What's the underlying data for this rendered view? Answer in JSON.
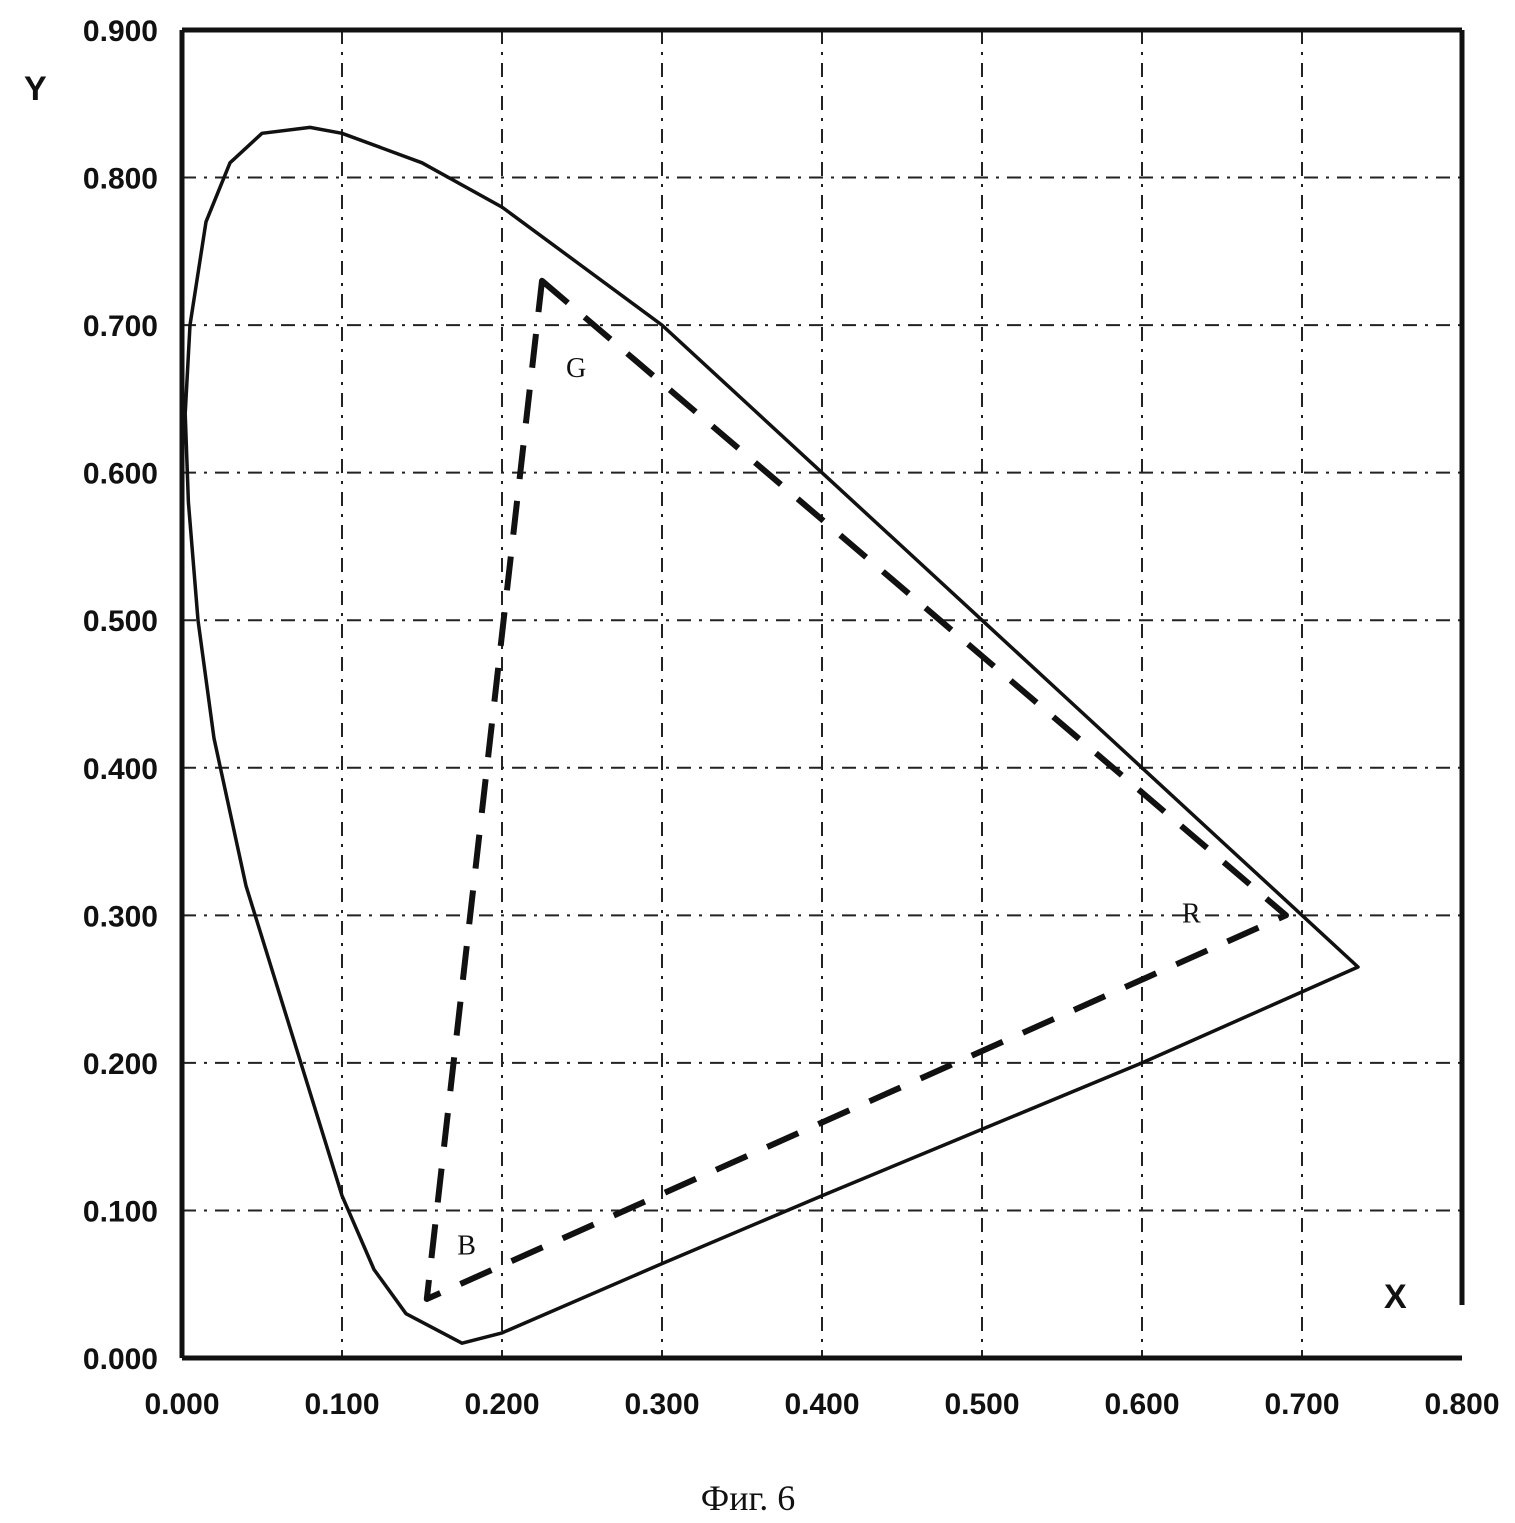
{
  "chart_data": {
    "type": "line",
    "xlabel": "X",
    "ylabel": "Y",
    "xlim": [
      0,
      0.8
    ],
    "ylim": [
      0,
      0.9
    ],
    "grid": true,
    "x_ticks": [
      "0.000",
      "0.100",
      "0.200",
      "0.300",
      "0.400",
      "0.500",
      "0.600",
      "0.700",
      "0.800"
    ],
    "y_ticks": [
      "0.000",
      "0.100",
      "0.200",
      "0.300",
      "0.400",
      "0.500",
      "0.600",
      "0.700",
      "0.800",
      "0.900"
    ],
    "series": [
      {
        "style": "solid",
        "closed": true,
        "x": [
          0.175,
          0.14,
          0.12,
          0.1,
          0.08,
          0.06,
          0.04,
          0.02,
          0.01,
          0.004,
          0.002,
          0.005,
          0.015,
          0.03,
          0.05,
          0.08,
          0.1,
          0.15,
          0.2,
          0.25,
          0.3,
          0.35,
          0.4,
          0.45,
          0.5,
          0.55,
          0.6,
          0.65,
          0.7,
          0.735,
          0.6,
          0.5,
          0.4,
          0.3,
          0.2,
          0.175
        ],
        "y": [
          0.01,
          0.03,
          0.06,
          0.11,
          0.18,
          0.25,
          0.32,
          0.42,
          0.5,
          0.58,
          0.64,
          0.7,
          0.77,
          0.81,
          0.83,
          0.834,
          0.83,
          0.81,
          0.78,
          0.74,
          0.7,
          0.65,
          0.6,
          0.55,
          0.5,
          0.45,
          0.4,
          0.35,
          0.3,
          0.265,
          0.2,
          0.155,
          0.11,
          0.064,
          0.017,
          0.01
        ]
      },
      {
        "style": "dashed",
        "closed": true,
        "x": [
          0.225,
          0.69,
          0.153
        ],
        "y": [
          0.73,
          0.3,
          0.04
        ]
      }
    ],
    "vertex_labels": [
      {
        "text": "G",
        "x": 0.24,
        "y": 0.665
      },
      {
        "text": "R",
        "x": 0.625,
        "y": 0.295
      },
      {
        "text": "B",
        "x": 0.172,
        "y": 0.07
      }
    ]
  },
  "caption": "Фиг. 6"
}
